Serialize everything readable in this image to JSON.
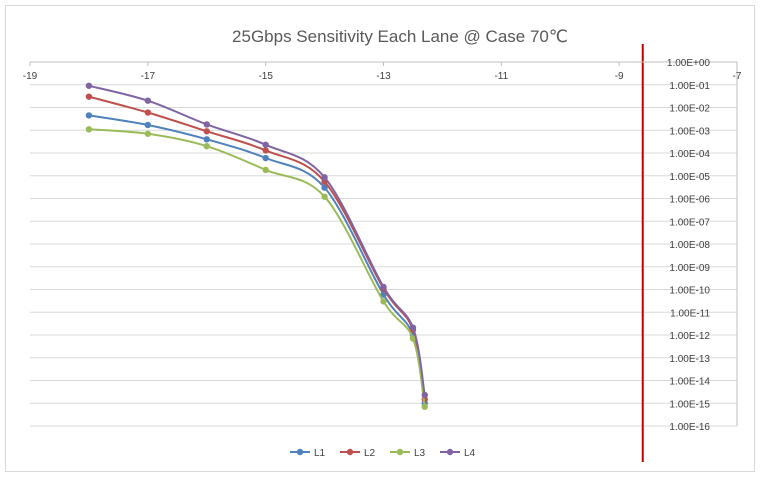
{
  "chart_data": {
    "type": "scatter",
    "title": "25Gbps Sensitivity Each Lane @ Case 70℃",
    "xlabel": "",
    "ylabel": "",
    "xlim": [
      -19,
      -7
    ],
    "x_ticks": [
      "-19",
      "-17",
      "-15",
      "-13",
      "-11",
      "-9",
      "-7"
    ],
    "x_tick_values": [
      -19,
      -17,
      -15,
      -13,
      -11,
      -9,
      -7
    ],
    "y_scale": "log",
    "y_exponent_range": [
      -16,
      0
    ],
    "y_ticks": [
      "1.00E+00",
      "1.00E-01",
      "1.00E-02",
      "1.00E-03",
      "1.00E-04",
      "1.00E-05",
      "1.00E-06",
      "1.00E-07",
      "1.00E-08",
      "1.00E-09",
      "1.00E-10",
      "1.00E-11",
      "1.00E-12",
      "1.00E-13",
      "1.00E-14",
      "1.00E-15",
      "1.00E-16"
    ],
    "grid": true,
    "legend_position": "bottom",
    "reference_line": {
      "x": -8.6,
      "color": "#C00000"
    },
    "series": [
      {
        "name": "L1",
        "color": "#4F81BD",
        "x": [
          -18,
          -17,
          -16,
          -15,
          -14,
          -13,
          -12.5,
          -12.3
        ],
        "y": [
          0.0045,
          0.0017,
          0.0004,
          6e-05,
          3e-06,
          6e-11,
          1e-12,
          1e-15
        ]
      },
      {
        "name": "L2",
        "color": "#C0504D",
        "x": [
          -18,
          -17,
          -16,
          -15,
          -14,
          -13,
          -12.5,
          -12.3
        ],
        "y": [
          0.03,
          0.006,
          0.0009,
          0.00013,
          5.5e-06,
          1.1e-10,
          1.7e-12,
          1.5e-15
        ]
      },
      {
        "name": "L3",
        "color": "#9BBB59",
        "x": [
          -18,
          -17,
          -16,
          -15,
          -14,
          -13,
          -12.5,
          -12.3
        ],
        "y": [
          0.0011,
          0.0007,
          0.0002,
          1.8e-05,
          1.2e-06,
          3e-11,
          7e-13,
          7e-16
        ]
      },
      {
        "name": "L4",
        "color": "#8064A2",
        "x": [
          -18,
          -17,
          -16,
          -15,
          -14,
          -13,
          -12.5,
          -12.3
        ],
        "y": [
          0.09,
          0.02,
          0.0018,
          0.00023,
          8.5e-06,
          1.3e-10,
          2.1e-12,
          2.3e-15
        ]
      }
    ]
  }
}
